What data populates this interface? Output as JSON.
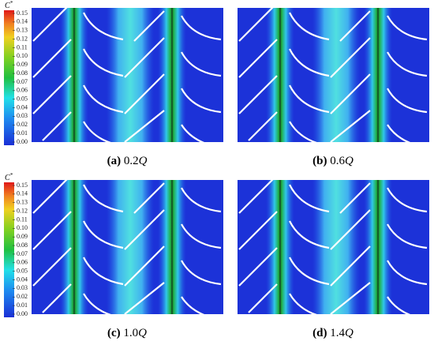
{
  "colorbars": [
    {
      "symbol": "C",
      "superscript": "*",
      "ticks": [
        "0.15",
        "0.14",
        "0.13",
        "0.12",
        "0.11",
        "0.10",
        "0.09",
        "0.08",
        "0.07",
        "0.06",
        "0.05",
        "0.04",
        "0.03",
        "0.02",
        "0.01",
        "0.00"
      ]
    },
    {
      "symbol": "C",
      "superscript": "*",
      "ticks": [
        "0.15",
        "0.14",
        "0.13",
        "0.12",
        "0.11",
        "0.10",
        "0.09",
        "0.08",
        "0.07",
        "0.06",
        "0.05",
        "0.04",
        "0.03",
        "0.02",
        "0.01",
        "0.00"
      ]
    }
  ],
  "panels": [
    {
      "letter": "(a)",
      "value": "0.2",
      "unit": "Q"
    },
    {
      "letter": "(b)",
      "value": "0.6",
      "unit": "Q"
    },
    {
      "letter": "(c)",
      "value": "1.0",
      "unit": "Q"
    },
    {
      "letter": "(d)",
      "value": "1.4",
      "unit": "Q"
    }
  ]
}
